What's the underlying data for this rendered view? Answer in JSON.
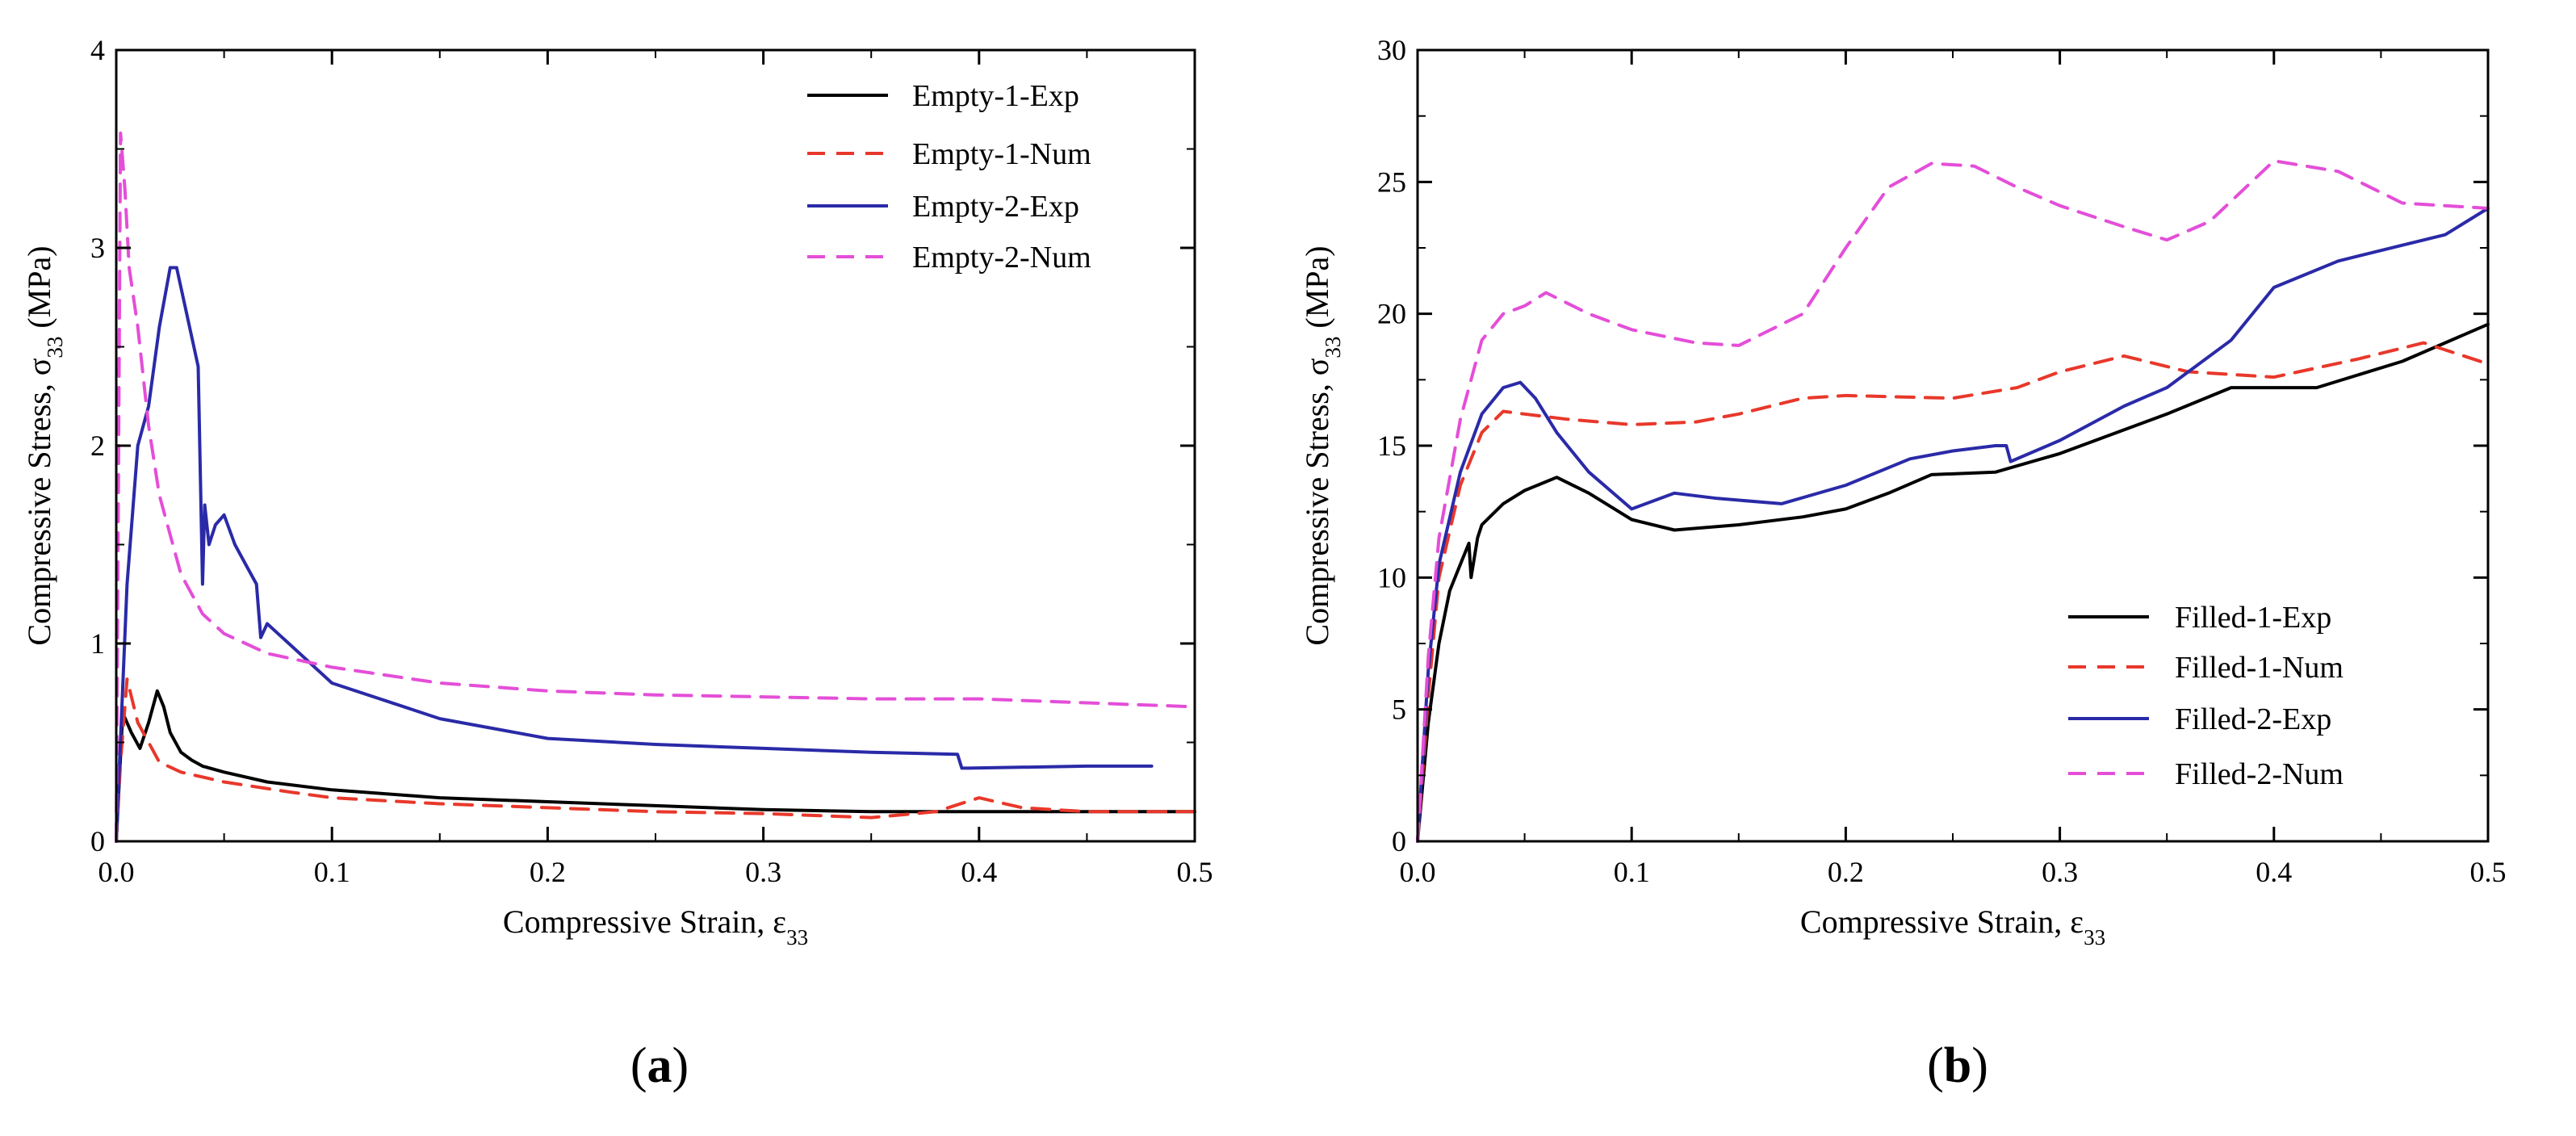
{
  "chart_data": [
    {
      "panel": "a",
      "type": "line",
      "xlabel": "Compressive Strain, ε",
      "xlabel_sub": "33",
      "ylabel": "Compressive Stress, σ",
      "ylabel_sub": "33",
      "ylabel_unit": " (MPa)",
      "xlim": [
        0,
        0.5
      ],
      "ylim": [
        0,
        4
      ],
      "xticks": [
        0,
        0.1,
        0.2,
        0.3,
        0.4,
        0.5
      ],
      "xtick_labels": [
        "0.0",
        "0.1",
        "0.2",
        "0.3",
        "0.4",
        "0.5"
      ],
      "yticks": [
        0,
        1,
        2,
        3,
        4
      ],
      "ytick_labels": [
        "0",
        "1",
        "2",
        "3",
        "4"
      ],
      "legend_position": "top-right",
      "series": [
        {
          "name": "Empty-1-Exp",
          "color": "#000000",
          "dash": "solid",
          "x": [
            0,
            0.003,
            0.007,
            0.011,
            0.015,
            0.019,
            0.022,
            0.025,
            0.03,
            0.035,
            0.04,
            0.05,
            0.07,
            0.1,
            0.15,
            0.2,
            0.25,
            0.3,
            0.35,
            0.4,
            0.45,
            0.5
          ],
          "y": [
            0,
            0.65,
            0.55,
            0.47,
            0.6,
            0.76,
            0.68,
            0.55,
            0.45,
            0.41,
            0.38,
            0.35,
            0.3,
            0.26,
            0.22,
            0.2,
            0.18,
            0.16,
            0.15,
            0.15,
            0.15,
            0.15
          ]
        },
        {
          "name": "Empty-1-Num",
          "color": "#e8382b",
          "dash": "dashed",
          "x": [
            0,
            0.002,
            0.005,
            0.01,
            0.015,
            0.02,
            0.03,
            0.05,
            0.08,
            0.1,
            0.15,
            0.2,
            0.25,
            0.3,
            0.35,
            0.38,
            0.4,
            0.42,
            0.45,
            0.5
          ],
          "y": [
            0,
            0.4,
            0.82,
            0.6,
            0.5,
            0.4,
            0.35,
            0.3,
            0.25,
            0.22,
            0.19,
            0.17,
            0.15,
            0.14,
            0.12,
            0.15,
            0.22,
            0.17,
            0.15,
            0.15
          ]
        },
        {
          "name": "Empty-2-Exp",
          "color": "#2a2aa8",
          "dash": "solid",
          "x": [
            0,
            0.005,
            0.01,
            0.015,
            0.02,
            0.025,
            0.028,
            0.032,
            0.038,
            0.04,
            0.041,
            0.043,
            0.046,
            0.05,
            0.055,
            0.06,
            0.065,
            0.067,
            0.07,
            0.075,
            0.08,
            0.1,
            0.15,
            0.2,
            0.25,
            0.3,
            0.35,
            0.39,
            0.392,
            0.395,
            0.45,
            0.48
          ],
          "y": [
            0,
            1.3,
            2.0,
            2.2,
            2.6,
            2.9,
            2.9,
            2.7,
            2.4,
            1.3,
            1.7,
            1.5,
            1.6,
            1.65,
            1.5,
            1.4,
            1.3,
            1.03,
            1.1,
            1.05,
            1.0,
            0.8,
            0.62,
            0.52,
            0.49,
            0.47,
            0.45,
            0.44,
            0.37,
            0.37,
            0.38,
            0.38
          ]
        },
        {
          "name": "Empty-2-Num",
          "color": "#e44ed8",
          "dash": "dashed",
          "x": [
            0,
            0.002,
            0.004,
            0.006,
            0.01,
            0.015,
            0.02,
            0.03,
            0.04,
            0.05,
            0.07,
            0.1,
            0.15,
            0.2,
            0.25,
            0.3,
            0.35,
            0.4,
            0.45,
            0.5
          ],
          "y": [
            0,
            3.58,
            3.3,
            2.9,
            2.6,
            2.1,
            1.75,
            1.35,
            1.15,
            1.05,
            0.95,
            0.88,
            0.8,
            0.76,
            0.74,
            0.73,
            0.72,
            0.72,
            0.7,
            0.68
          ]
        }
      ]
    },
    {
      "panel": "b",
      "type": "line",
      "xlabel": "Compressive Strain, ε",
      "xlabel_sub": "33",
      "ylabel": "Compressive Stress, σ",
      "ylabel_sub": "33",
      "ylabel_unit": " (MPa)",
      "xlim": [
        0,
        0.5
      ],
      "ylim": [
        0,
        30
      ],
      "xticks": [
        0,
        0.1,
        0.2,
        0.3,
        0.4,
        0.5
      ],
      "xtick_labels": [
        "0.0",
        "0.1",
        "0.2",
        "0.3",
        "0.4",
        "0.5"
      ],
      "yticks": [
        0,
        5,
        10,
        15,
        20,
        25,
        30
      ],
      "ytick_labels": [
        "0",
        "5",
        "10",
        "15",
        "20",
        "25",
        "30"
      ],
      "legend_position": "bottom-right",
      "series": [
        {
          "name": "Filled-1-Exp",
          "color": "#000000",
          "dash": "solid",
          "x": [
            0,
            0.005,
            0.01,
            0.015,
            0.02,
            0.024,
            0.025,
            0.028,
            0.03,
            0.04,
            0.05,
            0.065,
            0.08,
            0.1,
            0.12,
            0.15,
            0.18,
            0.2,
            0.22,
            0.24,
            0.27,
            0.3,
            0.35,
            0.38,
            0.42,
            0.46,
            0.5
          ],
          "y": [
            0,
            4.5,
            7.5,
            9.5,
            10.5,
            11.3,
            10.0,
            11.5,
            12.0,
            12.8,
            13.3,
            13.8,
            13.2,
            12.2,
            11.8,
            12.0,
            12.3,
            12.6,
            13.2,
            13.9,
            14.0,
            14.7,
            16.2,
            17.2,
            17.2,
            18.2,
            19.6
          ]
        },
        {
          "name": "Filled-1-Num",
          "color": "#e8382b",
          "dash": "dashed",
          "x": [
            0,
            0.005,
            0.01,
            0.02,
            0.03,
            0.04,
            0.05,
            0.07,
            0.1,
            0.13,
            0.15,
            0.18,
            0.2,
            0.25,
            0.28,
            0.3,
            0.33,
            0.36,
            0.4,
            0.44,
            0.47,
            0.5
          ],
          "y": [
            0,
            5.5,
            10.0,
            13.5,
            15.5,
            16.3,
            16.2,
            16.0,
            15.8,
            15.9,
            16.2,
            16.8,
            16.9,
            16.8,
            17.2,
            17.8,
            18.4,
            17.8,
            17.6,
            18.3,
            18.9,
            18.1
          ]
        },
        {
          "name": "Filled-2-Exp",
          "color": "#2a2aa8",
          "dash": "solid",
          "x": [
            0,
            0.005,
            0.01,
            0.02,
            0.03,
            0.04,
            0.048,
            0.055,
            0.065,
            0.08,
            0.1,
            0.12,
            0.14,
            0.17,
            0.2,
            0.23,
            0.25,
            0.27,
            0.275,
            0.277,
            0.3,
            0.33,
            0.35,
            0.38,
            0.4,
            0.43,
            0.46,
            0.48,
            0.5
          ],
          "y": [
            0,
            6.5,
            10.5,
            14.0,
            16.2,
            17.2,
            17.4,
            16.8,
            15.5,
            14.0,
            12.6,
            13.2,
            13.0,
            12.8,
            13.5,
            14.5,
            14.8,
            15.0,
            15.0,
            14.4,
            15.2,
            16.5,
            17.2,
            19.0,
            21.0,
            22.0,
            22.6,
            23.0,
            24.0
          ]
        },
        {
          "name": "Filled-2-Num",
          "color": "#e44ed8",
          "dash": "dashed",
          "x": [
            0,
            0.005,
            0.01,
            0.02,
            0.03,
            0.04,
            0.05,
            0.06,
            0.08,
            0.1,
            0.13,
            0.15,
            0.18,
            0.2,
            0.22,
            0.24,
            0.26,
            0.28,
            0.3,
            0.33,
            0.35,
            0.37,
            0.4,
            0.43,
            0.46,
            0.5
          ],
          "y": [
            0,
            7.0,
            11.5,
            16.0,
            19.0,
            20.0,
            20.3,
            20.8,
            20.0,
            19.4,
            18.9,
            18.8,
            20.0,
            22.5,
            24.8,
            25.7,
            25.6,
            24.8,
            24.1,
            23.3,
            22.8,
            23.5,
            25.8,
            25.4,
            24.2,
            24.0
          ]
        }
      ]
    }
  ],
  "panel_labels": [
    {
      "open": "(",
      "letter": "a",
      "close": ")"
    },
    {
      "open": "(",
      "letter": "b",
      "close": ")"
    }
  ]
}
